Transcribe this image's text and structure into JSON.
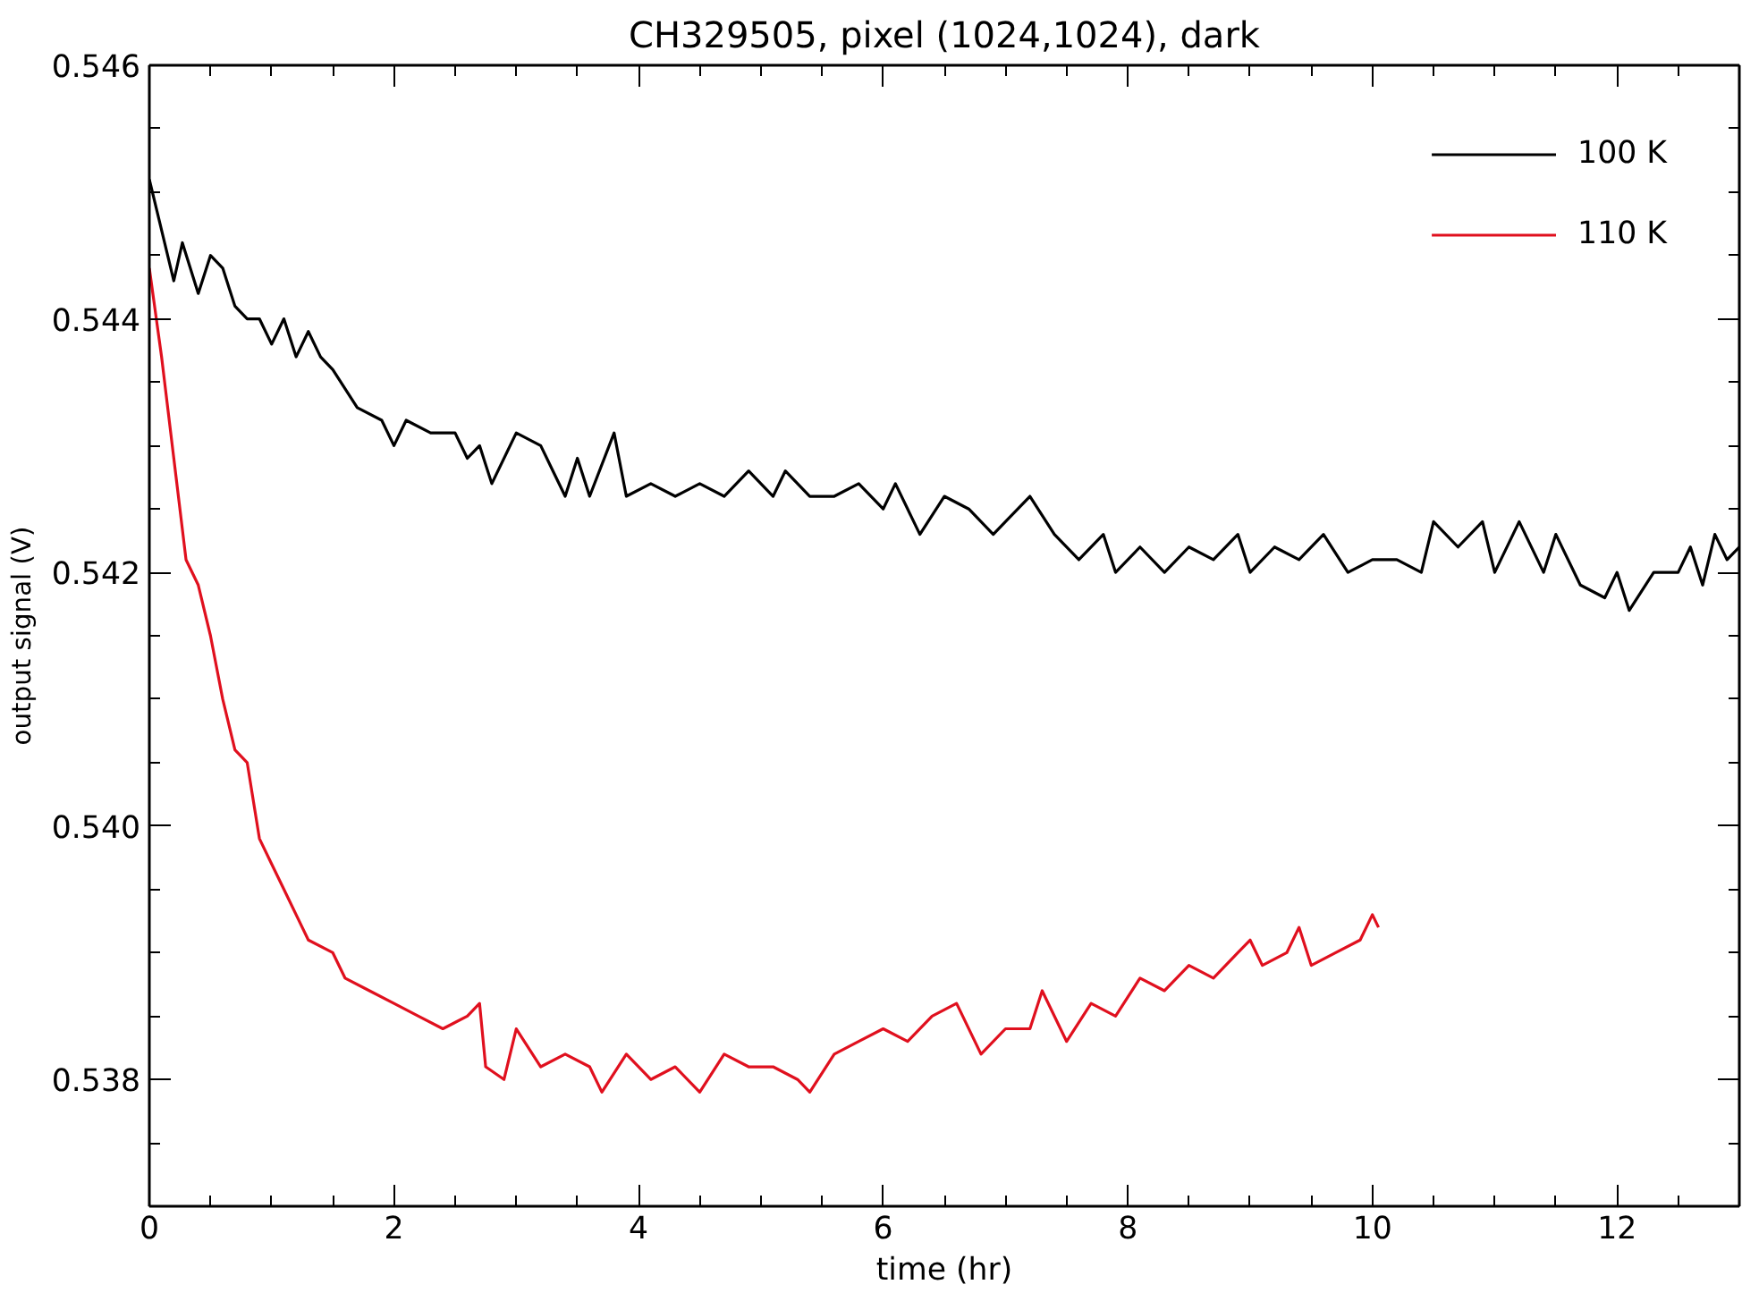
{
  "chart_data": {
    "type": "line",
    "title": "CH329505, pixel (1024,1024), dark",
    "xlabel": "time (hr)",
    "ylabel": "output signal (V)",
    "xlim": [
      0,
      13
    ],
    "xticks": [
      0,
      2,
      4,
      6,
      8,
      10,
      12
    ],
    "ylim": [
      0.537,
      0.546
    ],
    "yticks": [
      0.538,
      {
        "value": 0.54,
        "label": "0.540"
      },
      0.542,
      0.544,
      0.546
    ],
    "grid": false,
    "legend": "top right",
    "marker": "none",
    "line_style": "solid",
    "series": [
      {
        "name": "100 K",
        "color": "#000000",
        "x": [
          0,
          0.1,
          0.2,
          0.27,
          0.4,
          0.5,
          0.6,
          0.7,
          0.8,
          0.9,
          1.0,
          1.1,
          1.2,
          1.3,
          1.4,
          1.5,
          1.7,
          1.9,
          2.0,
          2.1,
          2.3,
          2.5,
          2.6,
          2.7,
          2.8,
          3.0,
          3.2,
          3.3,
          3.4,
          3.5,
          3.6,
          3.8,
          3.9,
          4.1,
          4.3,
          4.5,
          4.7,
          4.9,
          5.1,
          5.2,
          5.4,
          5.6,
          5.8,
          6.0,
          6.1,
          6.3,
          6.5,
          6.7,
          6.9,
          7.0,
          7.2,
          7.4,
          7.6,
          7.8,
          7.9,
          8.1,
          8.3,
          8.5,
          8.7,
          8.9,
          9.0,
          9.2,
          9.4,
          9.6,
          9.8,
          10.0,
          10.2,
          10.4,
          10.5,
          10.7,
          10.9,
          11.0,
          11.2,
          11.4,
          11.5,
          11.7,
          11.9,
          12.0,
          12.1,
          12.3,
          12.5,
          12.6,
          12.7,
          12.8,
          12.9,
          13.0
        ],
        "values": [
          0.5451,
          0.5447,
          0.5443,
          0.5446,
          0.5442,
          0.5445,
          0.5444,
          0.5441,
          0.544,
          0.544,
          0.5438,
          0.544,
          0.5437,
          0.5439,
          0.5437,
          0.5436,
          0.5433,
          0.5432,
          0.543,
          0.5432,
          0.5431,
          0.5431,
          0.5429,
          0.543,
          0.5427,
          0.5431,
          0.543,
          0.5428,
          0.5426,
          0.5429,
          0.5426,
          0.5431,
          0.5426,
          0.5427,
          0.5426,
          0.5427,
          0.5426,
          0.5428,
          0.5426,
          0.5428,
          0.5426,
          0.5426,
          0.5427,
          0.5425,
          0.5427,
          0.5423,
          0.5426,
          0.5425,
          0.5423,
          0.5424,
          0.5426,
          0.5423,
          0.5421,
          0.5423,
          0.542,
          0.5422,
          0.542,
          0.5422,
          0.5421,
          0.5423,
          0.542,
          0.5422,
          0.5421,
          0.5423,
          0.542,
          0.5421,
          0.5421,
          0.542,
          0.5424,
          0.5422,
          0.5424,
          0.542,
          0.5424,
          0.542,
          0.5423,
          0.5419,
          0.5418,
          0.542,
          0.5417,
          0.542,
          0.542,
          0.5422,
          0.5419,
          0.5423,
          0.5421,
          0.5422
        ]
      },
      {
        "name": "110 K",
        "color": "#e0101e",
        "x": [
          0,
          0.1,
          0.2,
          0.3,
          0.4,
          0.5,
          0.6,
          0.7,
          0.8,
          0.9,
          1.0,
          1.1,
          1.2,
          1.3,
          1.5,
          1.6,
          1.8,
          2.0,
          2.2,
          2.4,
          2.6,
          2.7,
          2.75,
          2.9,
          3.0,
          3.2,
          3.4,
          3.6,
          3.7,
          3.9,
          4.1,
          4.3,
          4.5,
          4.7,
          4.9,
          5.1,
          5.3,
          5.4,
          5.6,
          5.8,
          6.0,
          6.2,
          6.4,
          6.6,
          6.8,
          7.0,
          7.2,
          7.3,
          7.5,
          7.7,
          7.9,
          8.1,
          8.3,
          8.5,
          8.7,
          8.9,
          9.0,
          9.1,
          9.3,
          9.4,
          9.5,
          9.7,
          9.9,
          10.0,
          10.05
        ],
        "values": [
          0.5444,
          0.5437,
          0.5429,
          0.5421,
          0.5419,
          0.5415,
          0.541,
          0.5406,
          0.5405,
          0.5399,
          0.5397,
          0.5395,
          0.5393,
          0.5391,
          0.539,
          0.5388,
          0.5387,
          0.5386,
          0.5385,
          0.5384,
          0.5385,
          0.5386,
          0.5381,
          0.538,
          0.5384,
          0.5381,
          0.5382,
          0.5381,
          0.5379,
          0.5382,
          0.538,
          0.5381,
          0.5379,
          0.5382,
          0.5381,
          0.5381,
          0.538,
          0.5379,
          0.5382,
          0.5383,
          0.5384,
          0.5383,
          0.5385,
          0.5386,
          0.5382,
          0.5384,
          0.5384,
          0.5387,
          0.5383,
          0.5386,
          0.5385,
          0.5388,
          0.5387,
          0.5389,
          0.5388,
          0.539,
          0.5391,
          0.5389,
          0.539,
          0.5392,
          0.5389,
          0.539,
          0.5391,
          0.5393,
          0.5392
        ]
      }
    ]
  }
}
